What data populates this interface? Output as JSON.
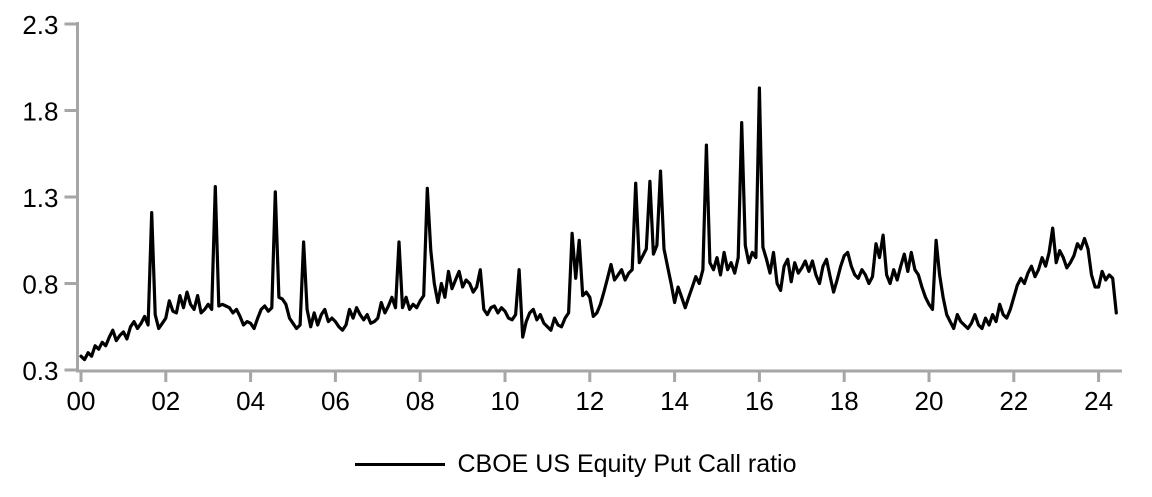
{
  "page": {
    "background": "#ffffff",
    "text_color": "#000000"
  },
  "chart_data": {
    "type": "line",
    "title": "",
    "xlabel": "",
    "ylabel": "",
    "grid": false,
    "legend_position": "bottom-center",
    "axis_color": "#a6a6a6",
    "tick_text_color": "#000000",
    "ylim": [
      0.3,
      2.3
    ],
    "xlim_years_from_2000": [
      0,
      24.55
    ],
    "y_ticks": [
      {
        "pos": 0.3,
        "label": "0.3"
      },
      {
        "pos": 0.8,
        "label": "0.8"
      },
      {
        "pos": 1.3,
        "label": "1.3"
      },
      {
        "pos": 1.8,
        "label": "1.8"
      },
      {
        "pos": 2.3,
        "label": "2.3"
      }
    ],
    "x_ticks": [
      {
        "pos": 0,
        "label": "00"
      },
      {
        "pos": 2,
        "label": "02"
      },
      {
        "pos": 4,
        "label": "04"
      },
      {
        "pos": 6,
        "label": "06"
      },
      {
        "pos": 8,
        "label": "08"
      },
      {
        "pos": 10,
        "label": "10"
      },
      {
        "pos": 12,
        "label": "12"
      },
      {
        "pos": 14,
        "label": "14"
      },
      {
        "pos": 16,
        "label": "16"
      },
      {
        "pos": 18,
        "label": "18"
      },
      {
        "pos": 20,
        "label": "20"
      },
      {
        "pos": 22,
        "label": "22"
      },
      {
        "pos": 24,
        "label": "24"
      }
    ],
    "x_start_year": 2000,
    "x_step": "1 month",
    "series": [
      {
        "name": "CBOE US Equity Put Call ratio",
        "color": "#000000",
        "line_width": 3.2,
        "values": [
          0.38,
          0.36,
          0.4,
          0.38,
          0.44,
          0.42,
          0.46,
          0.44,
          0.49,
          0.53,
          0.47,
          0.5,
          0.52,
          0.48,
          0.55,
          0.58,
          0.54,
          0.57,
          0.61,
          0.56,
          1.21,
          0.62,
          0.54,
          0.57,
          0.6,
          0.7,
          0.64,
          0.63,
          0.73,
          0.66,
          0.75,
          0.68,
          0.65,
          0.73,
          0.63,
          0.65,
          0.68,
          0.65,
          1.36,
          0.67,
          0.68,
          0.67,
          0.66,
          0.63,
          0.65,
          0.61,
          0.56,
          0.58,
          0.57,
          0.54,
          0.6,
          0.65,
          0.67,
          0.64,
          0.66,
          1.33,
          0.72,
          0.71,
          0.68,
          0.6,
          0.57,
          0.54,
          0.56,
          1.04,
          0.65,
          0.55,
          0.63,
          0.56,
          0.62,
          0.65,
          0.58,
          0.6,
          0.58,
          0.55,
          0.53,
          0.56,
          0.65,
          0.6,
          0.66,
          0.62,
          0.59,
          0.62,
          0.57,
          0.58,
          0.6,
          0.69,
          0.63,
          0.67,
          0.72,
          0.66,
          1.04,
          0.66,
          0.72,
          0.65,
          0.68,
          0.66,
          0.7,
          0.73,
          1.35,
          0.99,
          0.8,
          0.69,
          0.8,
          0.72,
          0.87,
          0.77,
          0.82,
          0.87,
          0.78,
          0.82,
          0.8,
          0.75,
          0.78,
          0.88,
          0.65,
          0.62,
          0.66,
          0.67,
          0.63,
          0.66,
          0.64,
          0.6,
          0.59,
          0.62,
          0.88,
          0.49,
          0.58,
          0.63,
          0.65,
          0.59,
          0.62,
          0.57,
          0.55,
          0.53,
          0.6,
          0.56,
          0.55,
          0.6,
          0.63,
          1.09,
          0.83,
          1.05,
          0.73,
          0.75,
          0.72,
          0.61,
          0.63,
          0.68,
          0.75,
          0.83,
          0.91,
          0.82,
          0.85,
          0.88,
          0.82,
          0.86,
          0.88,
          1.38,
          0.92,
          0.96,
          1.0,
          1.39,
          0.97,
          1.02,
          1.45,
          1.0,
          0.9,
          0.8,
          0.69,
          0.78,
          0.72,
          0.66,
          0.72,
          0.78,
          0.84,
          0.8,
          0.88,
          1.6,
          0.92,
          0.88,
          0.95,
          0.85,
          0.98,
          0.88,
          0.92,
          0.86,
          0.95,
          1.73,
          1.02,
          0.92,
          0.98,
          0.95,
          1.93,
          1.01,
          0.94,
          0.86,
          0.98,
          0.8,
          0.76,
          0.9,
          0.94,
          0.81,
          0.92,
          0.86,
          0.89,
          0.93,
          0.87,
          0.93,
          0.85,
          0.8,
          0.9,
          0.94,
          0.84,
          0.75,
          0.82,
          0.9,
          0.96,
          0.98,
          0.9,
          0.85,
          0.83,
          0.88,
          0.85,
          0.8,
          0.84,
          1.03,
          0.95,
          1.08,
          0.85,
          0.8,
          0.88,
          0.82,
          0.9,
          0.97,
          0.87,
          0.98,
          0.88,
          0.85,
          0.78,
          0.72,
          0.68,
          0.65,
          1.05,
          0.85,
          0.72,
          0.62,
          0.58,
          0.54,
          0.62,
          0.58,
          0.56,
          0.54,
          0.57,
          0.62,
          0.56,
          0.54,
          0.6,
          0.56,
          0.62,
          0.58,
          0.68,
          0.62,
          0.6,
          0.65,
          0.72,
          0.79,
          0.83,
          0.8,
          0.86,
          0.9,
          0.84,
          0.88,
          0.95,
          0.9,
          0.98,
          1.12,
          0.92,
          0.99,
          0.95,
          0.89,
          0.92,
          0.96,
          1.03,
          1.0,
          1.06,
          1.0,
          0.85,
          0.78,
          0.78,
          0.87,
          0.82,
          0.85,
          0.83,
          0.63
        ]
      }
    ]
  },
  "legend": {
    "label": "CBOE US Equity Put Call ratio"
  }
}
